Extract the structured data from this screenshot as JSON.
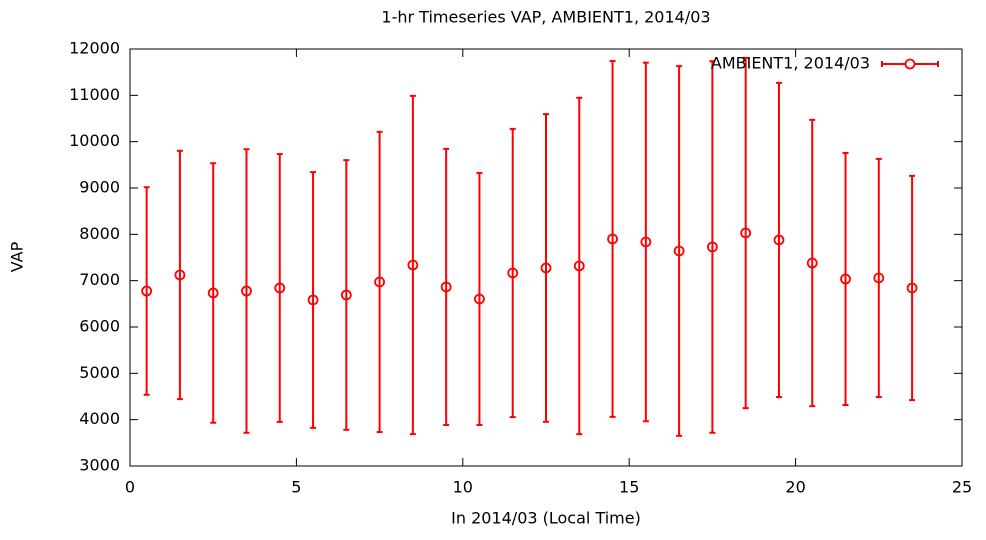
{
  "chart_data": {
    "type": "errorbar",
    "title": "1-hr Timeseries VAP, AMBIENT1, 2014/03",
    "xlabel": "In 2014/03 (Local Time)",
    "ylabel": "VAP",
    "x": [
      0.5,
      1.5,
      2.5,
      3.5,
      4.5,
      5.5,
      6.5,
      7.5,
      8.5,
      9.5,
      10.5,
      11.5,
      12.5,
      13.5,
      14.5,
      15.5,
      16.5,
      17.5,
      18.5,
      19.5,
      20.5,
      21.5,
      22.5,
      23.5
    ],
    "series": [
      {
        "name": "AMBIENT1, 2014/03",
        "color": "#ff0000",
        "values": [
          6777,
          7123,
          6734,
          6777,
          6842,
          6583,
          6691,
          6972,
          7338,
          6864,
          6605,
          7166,
          7274,
          7317,
          7900,
          7835,
          7641,
          7727,
          8029,
          7878,
          7381,
          7036,
          7058,
          6842
        ],
        "errors": [
          2240,
          2680,
          2800,
          3060,
          2890,
          2760,
          2910,
          3240,
          3650,
          2980,
          2720,
          3110,
          3320,
          3630,
          3840,
          3870,
          3990,
          4010,
          3780,
          3390,
          3090,
          2720,
          2570,
          2420
        ]
      }
    ],
    "xlim": [
      0,
      25
    ],
    "xticks": [
      0,
      5,
      10,
      15,
      20,
      25
    ],
    "ylim": [
      3000,
      12000
    ],
    "yticks": [
      3000,
      4000,
      5000,
      6000,
      7000,
      8000,
      9000,
      10000,
      11000,
      12000
    ],
    "legend": "upper right"
  }
}
